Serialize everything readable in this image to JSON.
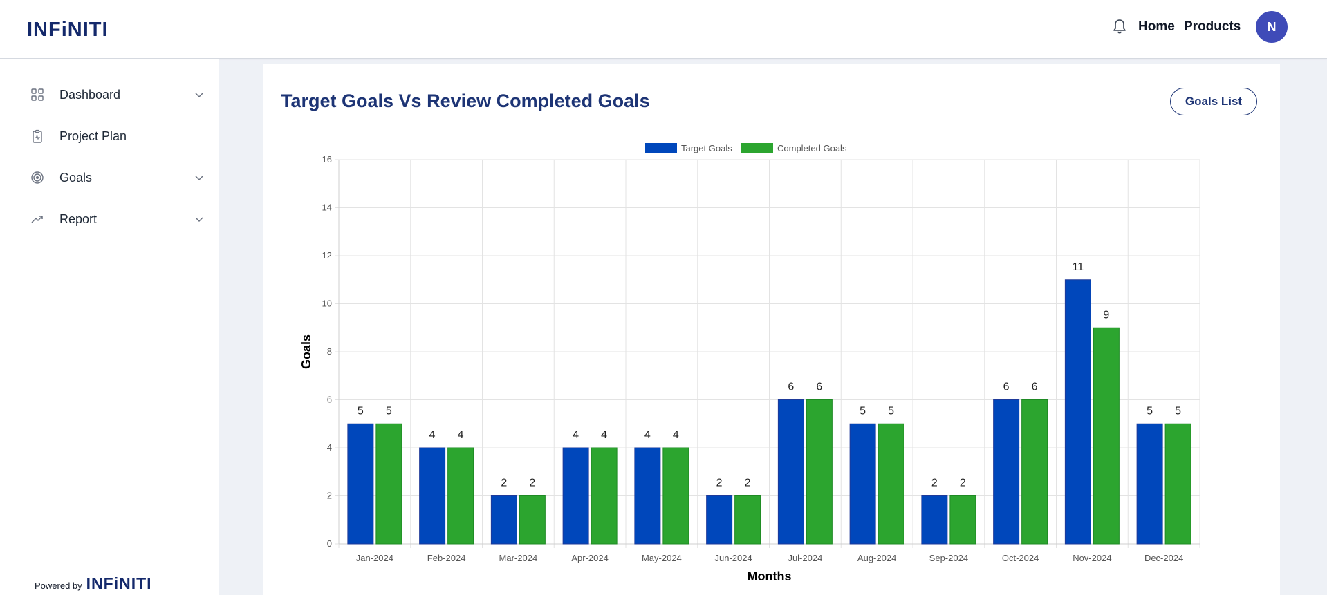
{
  "header": {
    "logo": "INFiNITI",
    "nav": {
      "home": "Home",
      "products": "Products"
    },
    "avatar_initial": "N",
    "icons": {
      "notifications": "bell-icon"
    }
  },
  "sidebar": {
    "items": [
      {
        "label": "Dashboard",
        "icon": "grid-icon",
        "has_submenu": true
      },
      {
        "label": "Project Plan",
        "icon": "clipboard-icon",
        "has_submenu": false
      },
      {
        "label": "Goals",
        "icon": "target-icon",
        "has_submenu": true
      },
      {
        "label": "Report",
        "icon": "trending-up-icon",
        "has_submenu": true
      }
    ],
    "footer": {
      "powered_by": "Powered by",
      "brand": "INFiNITI"
    }
  },
  "main": {
    "title": "Target Goals Vs Review Completed Goals",
    "goals_list_button": "Goals List"
  },
  "colors": {
    "target": "#0047bb",
    "completed": "#2ca52f",
    "accent": "#1d3475"
  },
  "chart_data": {
    "type": "bar",
    "categories": [
      "Jan-2024",
      "Feb-2024",
      "Mar-2024",
      "Apr-2024",
      "May-2024",
      "Jun-2024",
      "Jul-2024",
      "Aug-2024",
      "Sep-2024",
      "Oct-2024",
      "Nov-2024",
      "Dec-2024"
    ],
    "series": [
      {
        "name": "Target Goals",
        "values": [
          5,
          4,
          2,
          4,
          4,
          2,
          6,
          5,
          2,
          6,
          11,
          5
        ]
      },
      {
        "name": "Completed Goals",
        "values": [
          5,
          4,
          2,
          4,
          4,
          2,
          6,
          5,
          2,
          6,
          9,
          5
        ]
      }
    ],
    "xlabel": "Months",
    "ylabel": "Goals",
    "ylim": [
      0,
      16
    ],
    "yticks": [
      0,
      2,
      4,
      6,
      8,
      10,
      12,
      14,
      16
    ],
    "grid": true,
    "legend_position": "top-center",
    "data_labels": true
  }
}
